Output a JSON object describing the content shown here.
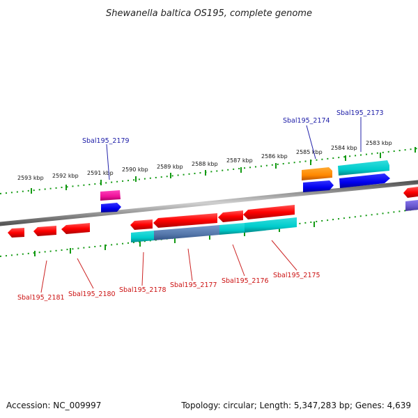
{
  "title": "Shewanella baltica OS195, complete genome",
  "accession_label": "Accession: NC_009997",
  "summary_label": "Topology: circular; Length: 5,347,283 bp; Genes: 4,639",
  "ticks": [
    "2593 kbp",
    "2592 kbp",
    "2591 kbp",
    "2590 kbp",
    "2589 kbp",
    "2588 kbp",
    "2587 kbp",
    "2586 kbp",
    "2585 kbp",
    "2584 kbp",
    "2583 kbp"
  ],
  "top_genes": [
    "Sbal195_2179",
    "Sbal195_2174",
    "Sbal195_2173"
  ],
  "bottom_genes": [
    "Sbal195_2181",
    "Sbal195_2180",
    "Sbal195_2178",
    "Sbal195_2177",
    "Sbal195_2176",
    "Sbal195_2175"
  ],
  "colors": {
    "cds": "#ff0000",
    "gene": "#00cccc",
    "gene_blue": "#0000ee",
    "gene_orange": "#ff8800",
    "gene_magenta": "#ee1199",
    "gene_purple": "#6655cc",
    "backbone": "#888888",
    "tick": "#119911"
  }
}
